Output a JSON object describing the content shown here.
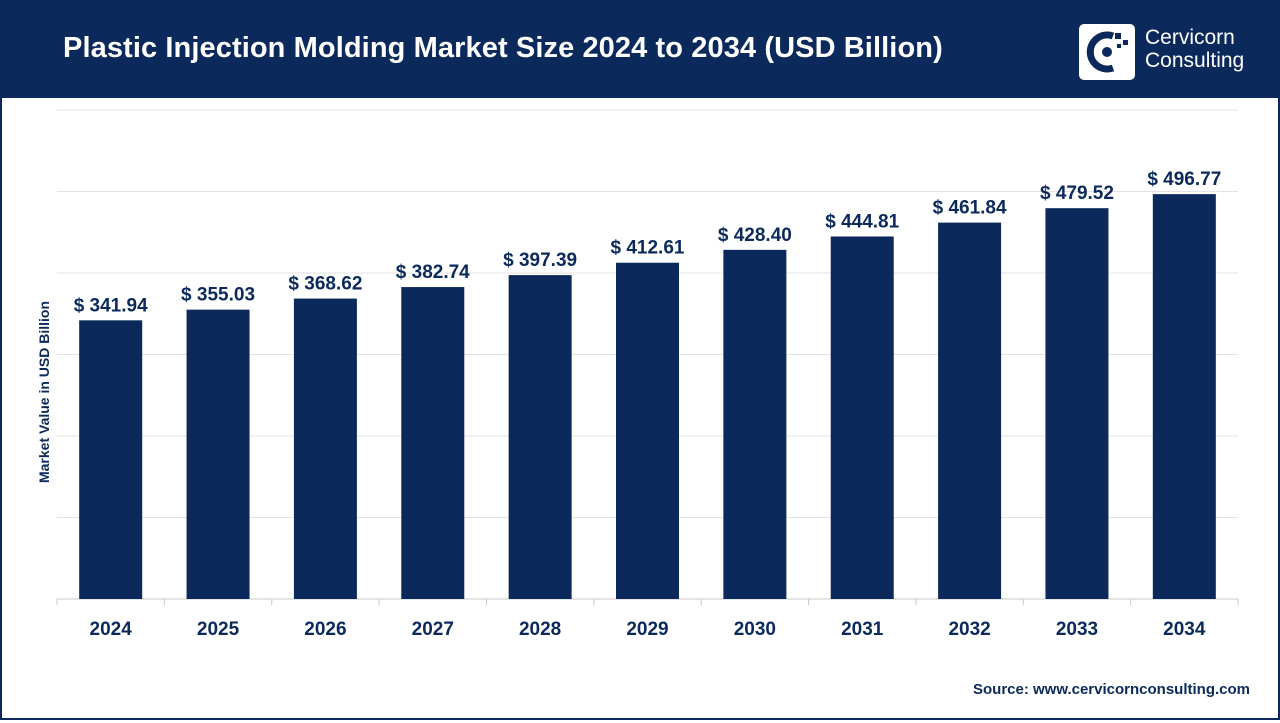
{
  "header": {
    "title": "Plastic Injection Molding Market Size 2024 to 2034 (USD Billion)",
    "logo_line1": "Cervicorn",
    "logo_line2": "Consulting",
    "logo_icon": "cervicorn-logo-icon"
  },
  "colors": {
    "header_bg": "#0b2a5b",
    "bar": "#0b2a5b",
    "text": "#0b2a5b",
    "grid": "#e3e3e3"
  },
  "chart_data": {
    "type": "bar",
    "title": "Plastic Injection Molding Market Size 2024 to 2034 (USD Billion)",
    "xlabel": "",
    "ylabel": "Market Value in USD Billion",
    "categories": [
      "2024",
      "2025",
      "2026",
      "2027",
      "2028",
      "2029",
      "2030",
      "2031",
      "2032",
      "2033",
      "2034"
    ],
    "values": [
      341.94,
      355.03,
      368.62,
      382.74,
      397.39,
      412.61,
      428.4,
      444.81,
      461.84,
      479.52,
      496.77
    ],
    "value_labels": [
      "$ 341.94",
      "$ 355.03",
      "$ 368.62",
      "$ 382.74",
      "$ 397.39",
      "$ 412.61",
      "$ 428.40",
      "$ 444.81",
      "$ 461.84",
      "$ 479.52",
      "$ 496.77"
    ],
    "ylim": [
      0,
      600
    ],
    "grid": true,
    "legend": "none"
  },
  "footer": {
    "source": "Source: www.cervicornconsulting.com"
  }
}
